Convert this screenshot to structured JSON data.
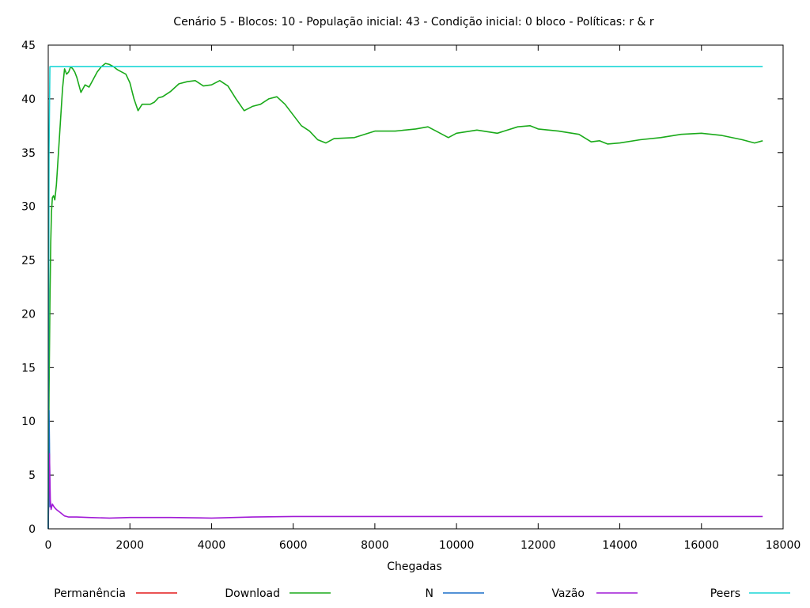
{
  "chart_data": {
    "type": "line",
    "title": "Cenário 5 - Blocos: 10 - População inicial: 43 - Condição inicial: 0 bloco - Políticas: r & r",
    "xlabel": "Chegadas",
    "ylabel": "",
    "xlim": [
      0,
      18000
    ],
    "ylim": [
      0,
      45
    ],
    "xticks": [
      0,
      2000,
      4000,
      6000,
      8000,
      10000,
      12000,
      14000,
      16000,
      18000
    ],
    "yticks": [
      0,
      5,
      10,
      15,
      20,
      25,
      30,
      35,
      40,
      45
    ],
    "grid": false,
    "legend": "bottom",
    "series": [
      {
        "name": "Permanência",
        "color": "#e41a1c",
        "x": [],
        "y": []
      },
      {
        "name": "Download",
        "color": "#1aaa1a",
        "x": [
          0,
          20,
          40,
          60,
          80,
          100,
          130,
          160,
          200,
          250,
          300,
          350,
          400,
          450,
          500,
          550,
          600,
          650,
          700,
          800,
          900,
          1000,
          1100,
          1200,
          1300,
          1400,
          1500,
          1600,
          1700,
          1800,
          1900,
          2000,
          2100,
          2200,
          2300,
          2500,
          2600,
          2700,
          2800,
          3000,
          3200,
          3400,
          3600,
          3800,
          4000,
          4200,
          4400,
          4600,
          4800,
          5000,
          5200,
          5400,
          5600,
          5800,
          6000,
          6200,
          6400,
          6600,
          6800,
          7000,
          7500,
          8000,
          8500,
          9000,
          9300,
          9500,
          9800,
          10000,
          10500,
          11000,
          11500,
          11800,
          12000,
          12500,
          13000,
          13300,
          13500,
          13700,
          14000,
          14500,
          15000,
          15500,
          16000,
          16500,
          17000,
          17300,
          17500
        ],
        "y": [
          0,
          12.5,
          21,
          26.5,
          29.5,
          30.8,
          31,
          30.6,
          32,
          35,
          38,
          41,
          42.8,
          42.3,
          42.5,
          43,
          42.8,
          42.5,
          42,
          40.6,
          41.3,
          41.1,
          41.8,
          42.5,
          43,
          43.3,
          43.2,
          43,
          42.7,
          42.5,
          42.3,
          41.5,
          40,
          38.9,
          39.5,
          39.5,
          39.7,
          40.1,
          40.2,
          40.7,
          41.4,
          41.6,
          41.7,
          41.2,
          41.3,
          41.7,
          41.2,
          40,
          38.9,
          39.3,
          39.5,
          40,
          40.2,
          39.5,
          38.5,
          37.5,
          37,
          36.2,
          35.9,
          36.3,
          36.4,
          37,
          37,
          37.2,
          37.4,
          37,
          36.4,
          36.8,
          37.1,
          36.8,
          37.4,
          37.5,
          37.2,
          37,
          36.7,
          36,
          36.1,
          35.8,
          35.9,
          36.2,
          36.4,
          36.7,
          36.8,
          36.6,
          36.2,
          35.9,
          36.1
        ]
      },
      {
        "name": "N",
        "color": "#1a6ec8",
        "x": [
          0,
          10,
          20,
          30,
          40
        ],
        "y": [
          0,
          5,
          11,
          8,
          2
        ]
      },
      {
        "name": "Vazão",
        "color": "#a11ad6",
        "x": [
          0,
          30,
          50,
          70,
          100,
          150,
          200,
          300,
          400,
          500,
          700,
          1000,
          1500,
          2000,
          3000,
          4000,
          5000,
          6000,
          8000,
          10000,
          12000,
          14000,
          16000,
          17500
        ],
        "y": [
          0,
          7,
          2.7,
          1.8,
          2.3,
          2,
          1.8,
          1.5,
          1.2,
          1.1,
          1.1,
          1.05,
          1.0,
          1.05,
          1.05,
          1.0,
          1.1,
          1.15,
          1.15,
          1.15,
          1.15,
          1.15,
          1.15,
          1.15
        ]
      },
      {
        "name": "Peers",
        "color": "#1ad6d6",
        "x": [
          0,
          10,
          20,
          40,
          60,
          17500
        ],
        "y": [
          0,
          20,
          35,
          43,
          43,
          43
        ]
      }
    ]
  }
}
